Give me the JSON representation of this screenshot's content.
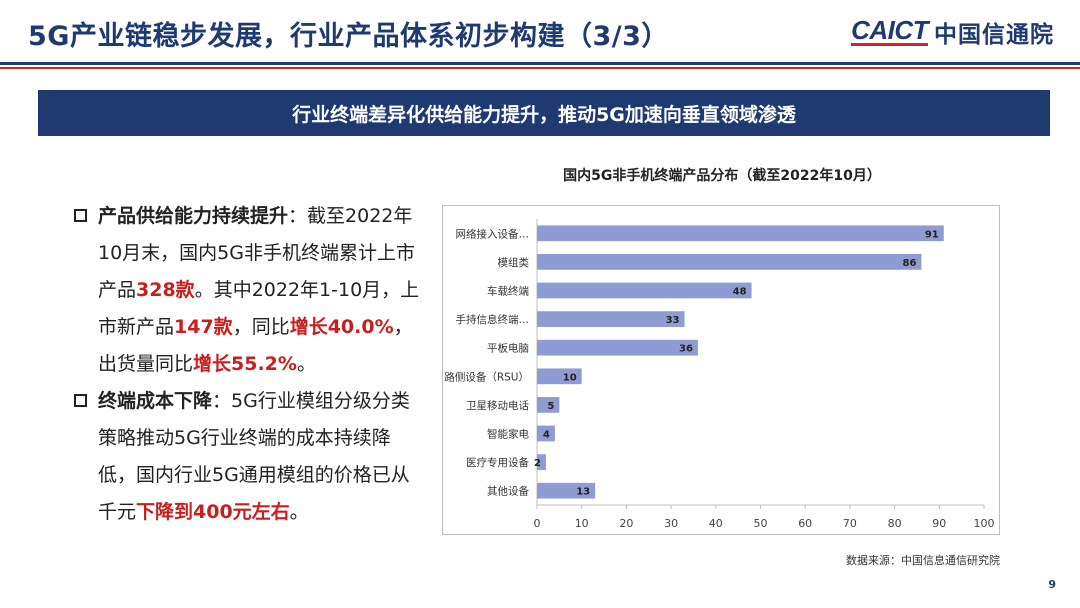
{
  "header": {
    "title": "5G产业链稳步发展，行业产品体系初步构建（3/3）",
    "logo_en": "CAICT",
    "logo_cn": "中国信通院"
  },
  "banner": "行业终端差异化供给能力提升，推动5G加速向垂直领域渗透",
  "bullets": [
    {
      "heading": "产品供给能力持续提升",
      "t1": "：截至2022年10月末，国内5G非手机终端累计上市产品",
      "h1": "328款",
      "t2": "。其中2022年1-10月，上市新产品",
      "h2": "147款",
      "t3": "，同比",
      "h3": "增长40.0%",
      "t4": "，出货量同比",
      "h4": "增长55.2%",
      "t5": "。"
    },
    {
      "heading": "终端成本下降",
      "t1": "：5G行业模组分级分类策略推动5G行业终端的成本持续降低，国内行业5G通用模组的价格已从千元",
      "h1": "下降到400元左右",
      "t2": "。"
    }
  ],
  "chart_data": {
    "type": "bar",
    "orientation": "horizontal",
    "title": "国内5G非手机终端产品分布（截至2022年10月）",
    "categories": [
      "网络接入设备…",
      "模组类",
      "车载终端",
      "手持信息终端…",
      "平板电脑",
      "路侧设备（RSU）",
      "卫星移动电话",
      "智能家电",
      "医疗专用设备",
      "其他设备"
    ],
    "values": [
      91,
      86,
      48,
      33,
      36,
      10,
      5,
      4,
      2,
      13
    ],
    "xlim": [
      0,
      100
    ],
    "xticks": [
      0,
      10,
      20,
      30,
      40,
      50,
      60,
      70,
      80,
      90,
      100
    ],
    "bar_color": "#8f9bd3",
    "grid": false,
    "data_labels": true
  },
  "source": "数据来源：中国信息通信研究院",
  "page_number": "9"
}
